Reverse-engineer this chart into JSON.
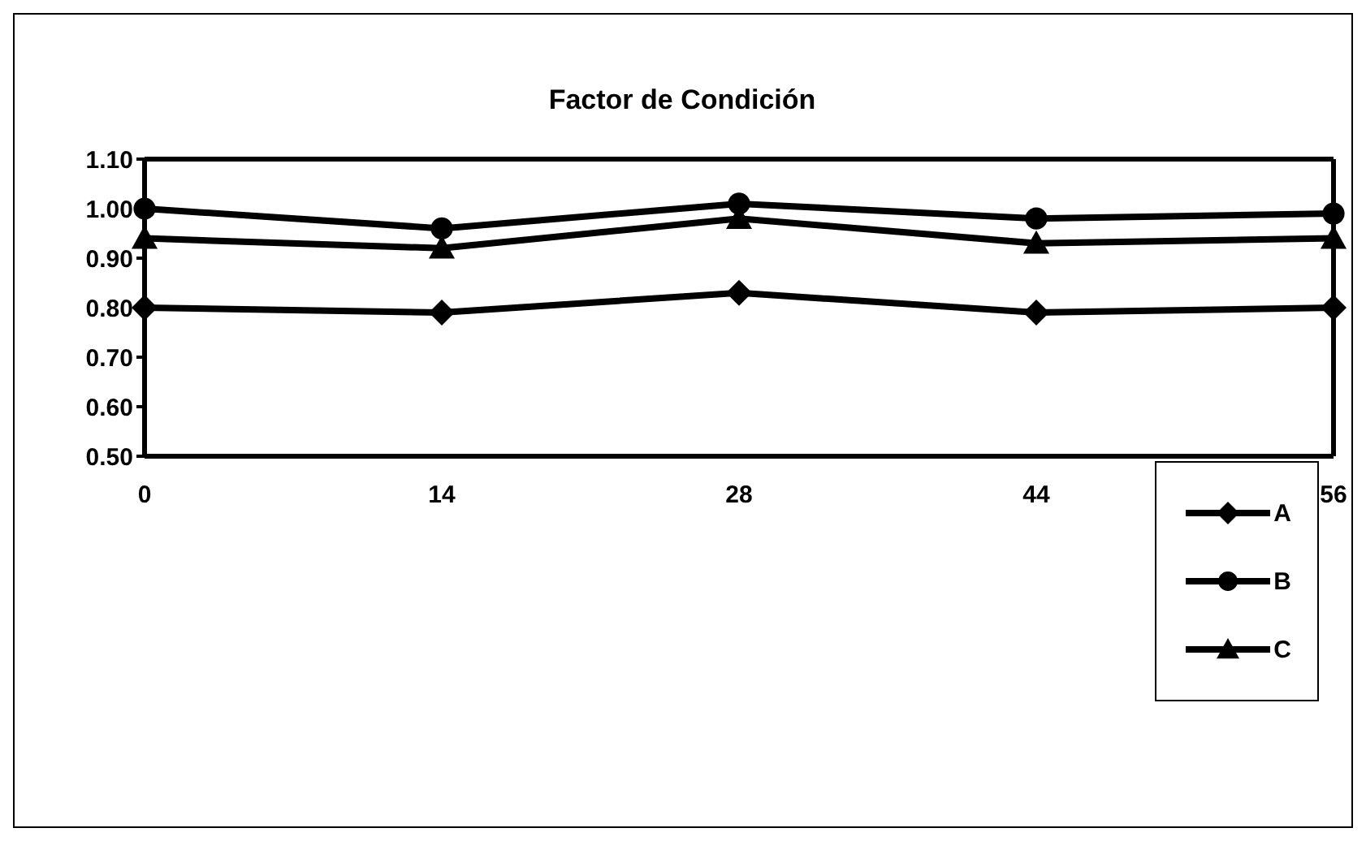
{
  "chart_data": {
    "type": "line",
    "title": "Factor de Condición",
    "categories": [
      "0",
      "14",
      "28",
      "44",
      "56"
    ],
    "series": [
      {
        "name": "A",
        "color": "#000000",
        "marker": "diamond",
        "values": [
          0.8,
          0.79,
          0.83,
          0.79,
          0.8
        ]
      },
      {
        "name": "B",
        "color": "#000000",
        "marker": "circle",
        "values": [
          1.0,
          0.96,
          1.01,
          0.98,
          0.99
        ]
      },
      {
        "name": "C",
        "color": "#000000",
        "marker": "triangle",
        "values": [
          0.94,
          0.92,
          0.98,
          0.93,
          0.94
        ]
      }
    ],
    "ylim": [
      0.5,
      1.1
    ],
    "yticks": [
      {
        "value": 0.5,
        "label": "0.50"
      },
      {
        "value": 0.6,
        "label": "0.60"
      },
      {
        "value": 0.7,
        "label": "0.70"
      },
      {
        "value": 0.8,
        "label": "0.80"
      },
      {
        "value": 0.9,
        "label": "0.90"
      },
      {
        "value": 1.0,
        "label": "1.00"
      },
      {
        "value": 1.1,
        "label": "1.10"
      }
    ],
    "grid": false,
    "legend": "right",
    "line_style": "solid"
  }
}
